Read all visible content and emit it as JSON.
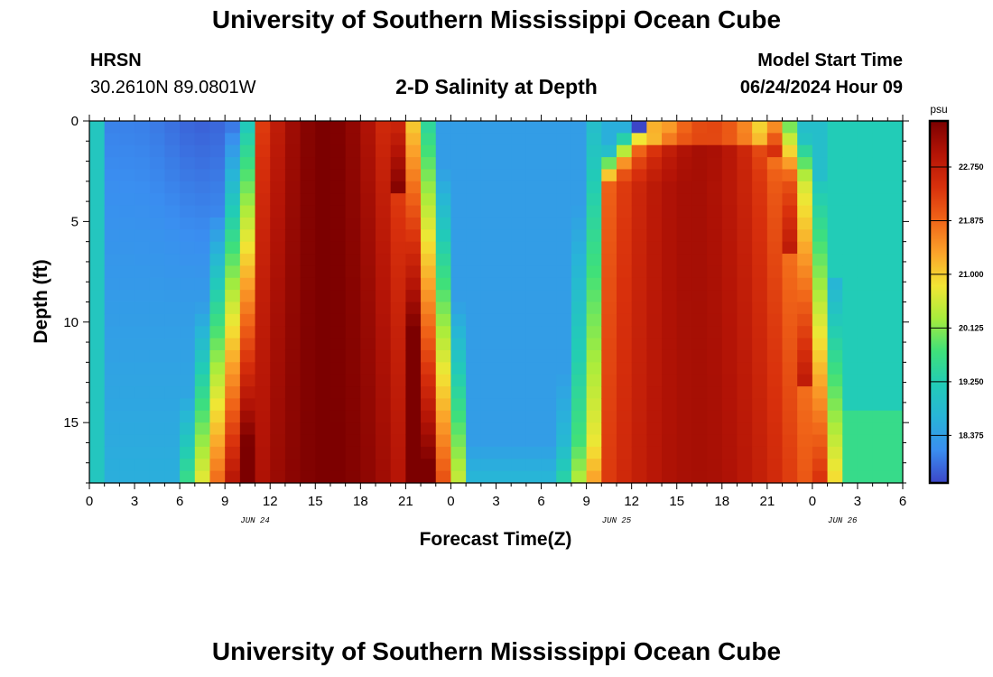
{
  "header": {
    "title": "University of Southern Mississippi Ocean Cube",
    "station": "HRSN",
    "coords": "30.2610N  89.0801W",
    "subtitle": "2-D Salinity at Depth",
    "model_start_label": "Model Start Time",
    "model_start_value": "06/24/2024 Hour 09",
    "footer_title": "University of Southern Mississippi Ocean Cube"
  },
  "chart_data": {
    "type": "heatmap",
    "title": "2-D Salinity at Depth",
    "xlabel": "Forecast Time(Z)",
    "ylabel": "Depth (ft)",
    "x_ticks": [
      "0",
      "3",
      "6",
      "9",
      "12",
      "15",
      "18",
      "21",
      "0",
      "3",
      "6",
      "9",
      "12",
      "15",
      "18",
      "21",
      "0",
      "3",
      "6"
    ],
    "x_range_hours": [
      0,
      54
    ],
    "date_labels": [
      {
        "label": "JUN 24",
        "hour": 11
      },
      {
        "label": "JUN 25",
        "hour": 35
      },
      {
        "label": "JUN 26",
        "hour": 50
      }
    ],
    "y_ticks": [
      "0",
      "5",
      "10",
      "15"
    ],
    "y_range_ft": [
      0,
      18
    ],
    "y_inverted": true,
    "colorbar": {
      "unit": "psu",
      "min": 17.6,
      "max": 23.5,
      "ticks": [
        "22.750",
        "21.875",
        "21.000",
        "20.125",
        "19.250",
        "18.375"
      ],
      "tick_values": [
        22.75,
        21.875,
        21.0,
        20.125,
        19.25,
        18.375
      ],
      "colormap": [
        "#3c46c8",
        "#3a8ef0",
        "#28b4d8",
        "#22ccb6",
        "#3fe07a",
        "#a8ec3c",
        "#f2e634",
        "#fba22a",
        "#f06418",
        "#d8300c",
        "#b41406",
        "#7c0000"
      ]
    },
    "features": [
      {
        "description": "high-salinity tongue",
        "x_hours": [
          11,
          22
        ],
        "core_value": 23.4
      },
      {
        "description": "high-salinity tongue",
        "x_hours": [
          35,
          47
        ],
        "core_value": 23.0
      },
      {
        "description": "low-salinity surface anomaly",
        "x_hours": [
          36.2
        ],
        "y_ft": [
          0.5
        ],
        "value": 17.6
      }
    ]
  }
}
